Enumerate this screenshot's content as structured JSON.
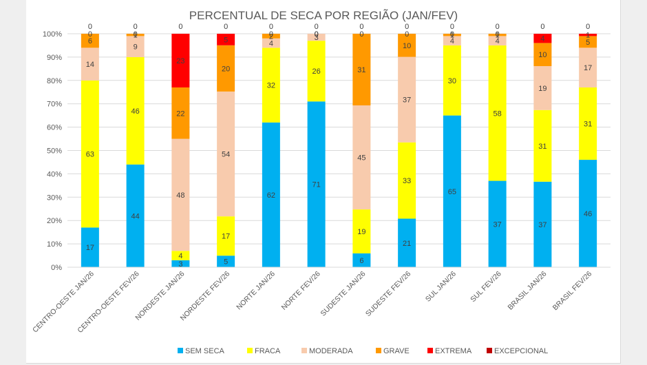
{
  "chart_data": {
    "type": "bar",
    "stacked": "percent",
    "title": "PERCENTUAL DE SECA POR REGIÃO (JAN/FEV)",
    "xlabel": "",
    "ylabel": "",
    "ylim": [
      0,
      100
    ],
    "yticks": [
      "0%",
      "10%",
      "20%",
      "30%",
      "40%",
      "50%",
      "60%",
      "70%",
      "80%",
      "90%",
      "100%"
    ],
    "grid": true,
    "legend_position": "bottom",
    "categories": [
      "CENTRO-OESTE JAN/26",
      "CENTRO-OESTE FEV/26",
      "NORDESTE JAN/26",
      "NORDESTE FEV/26",
      "NORTE JAN/26",
      "NORTE FEV/26",
      "SUDESTE JAN/26",
      "SUDESTE FEV/26",
      "SUL JAN/26",
      "SUL FEV/26",
      "BRASIL JAN/26",
      "BRASIL FEV/26"
    ],
    "series": [
      {
        "name": "SEM SECA",
        "color": "#00b0f0",
        "values": [
          17,
          44,
          3,
          5,
          62,
          71,
          6,
          21,
          65,
          37,
          37,
          46
        ]
      },
      {
        "name": "FRACA",
        "color": "#ffff00",
        "values": [
          63,
          46,
          4,
          17,
          32,
          26,
          19,
          33,
          30,
          58,
          31,
          31
        ]
      },
      {
        "name": "MODERADA",
        "color": "#f8cbad",
        "values": [
          14,
          9,
          48,
          54,
          4,
          3,
          45,
          37,
          4,
          4,
          19,
          17
        ]
      },
      {
        "name": "GRAVE",
        "color": "#ff9900",
        "values": [
          6,
          1,
          22,
          20,
          2,
          0,
          31,
          10,
          1,
          1,
          10,
          5
        ]
      },
      {
        "name": "EXTREMA",
        "color": "#ff0000",
        "values": [
          0,
          0,
          23,
          5,
          0,
          0,
          0,
          0,
          0,
          0,
          4,
          1
        ]
      },
      {
        "name": "EXCEPCIONAL",
        "color": "#c00000",
        "values": [
          0,
          0,
          0,
          0,
          0,
          0,
          0,
          0,
          0,
          0,
          0,
          0
        ]
      }
    ]
  }
}
